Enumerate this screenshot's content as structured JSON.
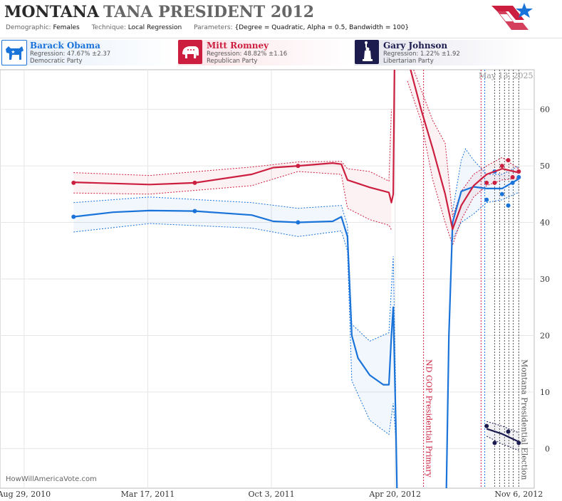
{
  "header": {
    "title_state": "MONTANA",
    "title_rest": "TANA PRESIDENT 2012",
    "demographic_label": "Demographic:",
    "demographic_value": "Females",
    "technique_label": "Technique:",
    "technique_value": "Local Regression",
    "parameters_label": "Parameters:",
    "parameters_value": "{Degree = Quadratic, Alpha = 0.5, Bandwidth = 100}"
  },
  "candidates": [
    {
      "name": "Barack Obama",
      "regression": "Regression: 47.67% ±2.37",
      "party": "Democratic Party",
      "color": "#1a73d9",
      "icon": "donkey-icon"
    },
    {
      "name": "Mitt Romney",
      "regression": "Regression: 48.82% ±1.16",
      "party": "Republican Party",
      "color": "#cc1f3f",
      "icon": "elephant-icon"
    },
    {
      "name": "Gary Johnson",
      "regression": "Regression: 1.22% ±1.92",
      "party": "Libertarian Party",
      "color": "#1c1c4f",
      "icon": "statue-of-liberty-icon"
    }
  ],
  "footer": {
    "watermark": "HowWillAmericaVote.com",
    "date_stamp": "May 13, 2025"
  },
  "chart_data": {
    "type": "line",
    "x_type": "date",
    "xlim": [
      "2010-07-21",
      "2012-12-01"
    ],
    "ylim": [
      -7,
      67
    ],
    "yticks": [
      0,
      10,
      20,
      30,
      40,
      50,
      60
    ],
    "xticks": [
      {
        "date": "2010-08-29",
        "label": "Aug 29, 2010"
      },
      {
        "date": "2011-03-17",
        "label": "Mar 17, 2011"
      },
      {
        "date": "2011-10-03",
        "label": "Oct 3, 2011"
      },
      {
        "date": "2012-04-20",
        "label": "Apr 20, 2012"
      },
      {
        "date": "2012-11-06",
        "label": "Nov 6, 2012"
      }
    ],
    "grid": true,
    "events": [
      {
        "date": "2012-06-05",
        "label": "ND GOP Presidential Primary",
        "color": "#cc1f3f"
      },
      {
        "date": "2012-11-06",
        "label": "Montana Presidential Election",
        "color": "#555555"
      }
    ],
    "event_lines": [
      {
        "date": "2012-09-06",
        "color": "#cc1f3f"
      },
      {
        "date": "2012-09-12",
        "color": "#1a73d9"
      },
      {
        "date": "2012-09-28",
        "color": "#555555"
      },
      {
        "date": "2012-10-06",
        "color": "#555555"
      },
      {
        "date": "2012-10-14",
        "color": "#555555"
      },
      {
        "date": "2012-10-21",
        "color": "#555555"
      },
      {
        "date": "2012-10-28",
        "color": "#555555"
      }
    ],
    "series": [
      {
        "name": "Barack Obama",
        "color": "#1a73d9",
        "line": [
          [
            "2010-11-17",
            41.0
          ],
          [
            "2011-01-20",
            41.8
          ],
          [
            "2011-03-20",
            42.1
          ],
          [
            "2011-06-01",
            42.0
          ],
          [
            "2011-09-01",
            41.3
          ],
          [
            "2011-10-06",
            40.2
          ],
          [
            "2011-11-15",
            40.0
          ],
          [
            "2012-01-10",
            40.2
          ],
          [
            "2012-01-24",
            41.0
          ],
          [
            "2012-02-03",
            37.5
          ],
          [
            "2012-02-10",
            20.0
          ],
          [
            "2012-02-20",
            16.0
          ],
          [
            "2012-03-10",
            13.0
          ],
          [
            "2012-04-01",
            11.3
          ],
          [
            "2012-04-10",
            11.3
          ],
          [
            "2012-04-14",
            20.0
          ],
          [
            "2012-04-17",
            25.0
          ],
          [
            "2012-04-21",
            5.0
          ],
          [
            "2012-04-23",
            -7.0
          ]
        ],
        "line2": [
          [
            "2012-07-12",
            -7.0
          ],
          [
            "2012-07-16",
            20.0
          ],
          [
            "2012-07-22",
            40.0
          ],
          [
            "2012-08-05",
            45.5
          ],
          [
            "2012-08-25",
            46.3
          ],
          [
            "2012-09-15",
            46.0
          ],
          [
            "2012-10-10",
            46.0
          ],
          [
            "2012-11-06",
            47.7
          ]
        ],
        "upper": [
          [
            "2010-11-17",
            43.5
          ],
          [
            "2011-03-20",
            44.5
          ],
          [
            "2011-09-01",
            43.5
          ],
          [
            "2011-11-15",
            42.5
          ],
          [
            "2012-01-24",
            43.0
          ],
          [
            "2012-02-03",
            39.5
          ],
          [
            "2012-02-10",
            22.0
          ],
          [
            "2012-03-10",
            19.0
          ],
          [
            "2012-04-10",
            20.5
          ],
          [
            "2012-04-17",
            34.0
          ],
          [
            "2012-04-21",
            10.0
          ]
        ],
        "lower": [
          [
            "2010-11-17",
            38.3
          ],
          [
            "2011-03-20",
            39.8
          ],
          [
            "2011-09-01",
            39.0
          ],
          [
            "2011-11-15",
            37.5
          ],
          [
            "2012-01-24",
            38.5
          ],
          [
            "2012-02-03",
            35.0
          ],
          [
            "2012-02-10",
            12.0
          ],
          [
            "2012-03-10",
            5.0
          ],
          [
            "2012-04-10",
            2.5
          ],
          [
            "2012-04-17",
            8.0
          ],
          [
            "2012-04-21",
            2.0
          ]
        ],
        "upper2": [
          [
            "2012-07-22",
            42.0
          ],
          [
            "2012-08-05",
            51.0
          ],
          [
            "2012-08-12",
            53.0
          ],
          [
            "2012-08-25",
            51.0
          ],
          [
            "2012-09-15",
            48.5
          ],
          [
            "2012-10-10",
            48.5
          ],
          [
            "2012-11-06",
            50.0
          ]
        ],
        "lower2": [
          [
            "2012-07-22",
            37.0
          ],
          [
            "2012-08-05",
            40.0
          ],
          [
            "2012-08-25",
            41.5
          ],
          [
            "2012-09-15",
            43.5
          ],
          [
            "2012-10-10",
            44.0
          ],
          [
            "2012-11-06",
            45.3
          ]
        ],
        "points": [
          [
            "2010-11-17",
            41
          ],
          [
            "2011-06-01",
            42
          ],
          [
            "2011-11-15",
            40
          ],
          [
            "2012-09-15",
            44
          ],
          [
            "2012-09-28",
            49
          ],
          [
            "2012-10-10",
            45
          ],
          [
            "2012-10-20",
            43
          ],
          [
            "2012-10-27",
            47
          ],
          [
            "2012-11-06",
            48
          ]
        ]
      },
      {
        "name": "Mitt Romney",
        "color": "#cc1f3f",
        "line": [
          [
            "2010-11-17",
            47.1
          ],
          [
            "2011-03-20",
            46.7
          ],
          [
            "2011-06-01",
            47.0
          ],
          [
            "2011-09-01",
            48.5
          ],
          [
            "2011-10-06",
            49.7
          ],
          [
            "2011-11-15",
            50.0
          ],
          [
            "2012-01-10",
            50.5
          ],
          [
            "2012-01-24",
            50.3
          ],
          [
            "2012-02-03",
            47.5
          ],
          [
            "2012-03-10",
            46.2
          ],
          [
            "2012-04-10",
            45.3
          ],
          [
            "2012-04-14",
            43.5
          ],
          [
            "2012-04-17",
            45.0
          ],
          [
            "2012-04-19",
            67.0
          ]
        ],
        "line2": [
          [
            "2012-05-15",
            67.0
          ],
          [
            "2012-06-01",
            60.0
          ],
          [
            "2012-06-20",
            53.0
          ],
          [
            "2012-07-10",
            45.0
          ],
          [
            "2012-07-22",
            38.8
          ],
          [
            "2012-08-05",
            43.0
          ],
          [
            "2012-08-25",
            46.5
          ],
          [
            "2012-09-15",
            48.5
          ],
          [
            "2012-10-10",
            49.5
          ],
          [
            "2012-11-06",
            48.8
          ]
        ],
        "upper": [
          [
            "2010-11-17",
            48.8
          ],
          [
            "2011-03-20",
            48.3
          ],
          [
            "2011-09-01",
            49.8
          ],
          [
            "2011-11-15",
            50.7
          ],
          [
            "2012-01-24",
            50.8
          ],
          [
            "2012-02-03",
            49.5
          ],
          [
            "2012-03-10",
            49.0
          ],
          [
            "2012-04-10",
            47.3
          ],
          [
            "2012-04-14",
            60.0
          ]
        ],
        "lower": [
          [
            "2010-11-17",
            45.2
          ],
          [
            "2011-03-20",
            45.0
          ],
          [
            "2011-09-01",
            46.5
          ],
          [
            "2011-11-15",
            49.0
          ],
          [
            "2012-01-24",
            48.5
          ],
          [
            "2012-02-03",
            42.5
          ],
          [
            "2012-03-10",
            40.5
          ],
          [
            "2012-04-10",
            39.5
          ],
          [
            "2012-04-14",
            38.7
          ]
        ],
        "upper2": [
          [
            "2012-05-20",
            67.0
          ],
          [
            "2012-06-20",
            58.0
          ],
          [
            "2012-07-10",
            54.0
          ],
          [
            "2012-07-22",
            41.0
          ],
          [
            "2012-08-05",
            45.5
          ],
          [
            "2012-08-25",
            48.5
          ],
          [
            "2012-09-15",
            50.0
          ],
          [
            "2012-10-10",
            51.5
          ],
          [
            "2012-11-06",
            49.5
          ]
        ],
        "lower2": [
          [
            "2012-05-10",
            65.0
          ],
          [
            "2012-06-01",
            58.0
          ],
          [
            "2012-06-20",
            47.5
          ],
          [
            "2012-07-10",
            40.0
          ],
          [
            "2012-07-22",
            36.0
          ],
          [
            "2012-08-05",
            40.5
          ],
          [
            "2012-08-25",
            44.5
          ],
          [
            "2012-09-15",
            46.5
          ],
          [
            "2012-10-10",
            47.5
          ],
          [
            "2012-11-06",
            47.8
          ]
        ],
        "points": [
          [
            "2010-11-17",
            47
          ],
          [
            "2011-06-01",
            47
          ],
          [
            "2011-11-15",
            50
          ],
          [
            "2012-09-15",
            47
          ],
          [
            "2012-09-28",
            47
          ],
          [
            "2012-10-10",
            50
          ],
          [
            "2012-10-20",
            51
          ],
          [
            "2012-10-27",
            48
          ],
          [
            "2012-11-06",
            49
          ]
        ]
      },
      {
        "name": "Gary Johnson",
        "color": "#1c1c4f",
        "line": [
          [
            "2012-09-15",
            3.5
          ],
          [
            "2012-10-10",
            2.6
          ],
          [
            "2012-11-06",
            1.2
          ]
        ],
        "upper": [
          [
            "2012-09-15",
            4.8
          ],
          [
            "2012-10-10",
            4.0
          ],
          [
            "2012-11-06",
            2.8
          ]
        ],
        "lower": [
          [
            "2012-09-15",
            2.2
          ],
          [
            "2012-10-10",
            0.8
          ],
          [
            "2012-11-06",
            -0.3
          ]
        ],
        "points": [
          [
            "2012-09-15",
            4
          ],
          [
            "2012-09-28",
            1
          ],
          [
            "2012-10-20",
            3
          ],
          [
            "2012-11-06",
            1
          ]
        ]
      }
    ]
  }
}
